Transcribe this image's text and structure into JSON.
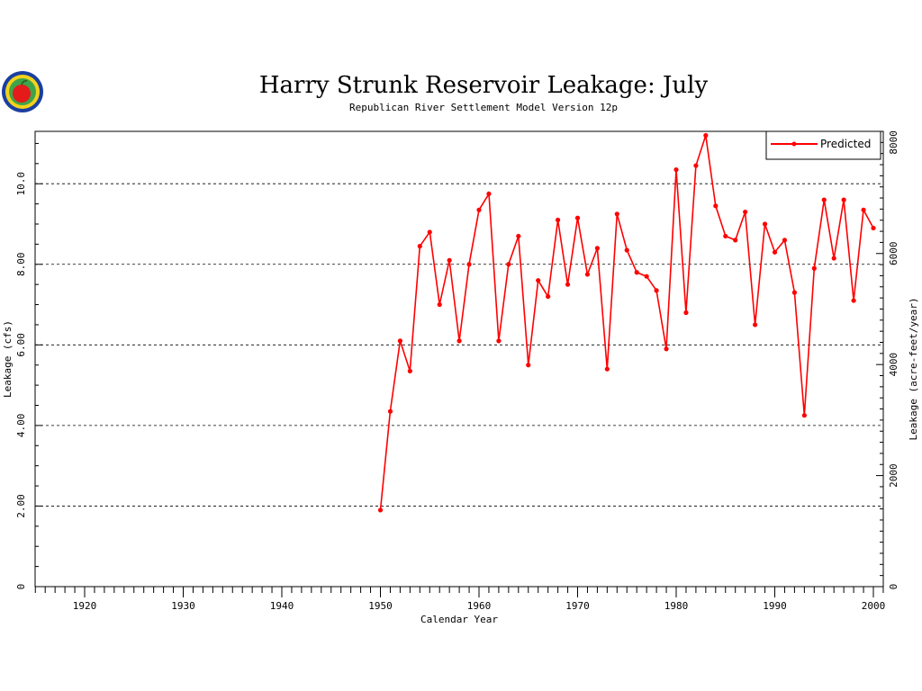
{
  "chart_data": {
    "type": "line",
    "title": "Harry Strunk Reservoir Leakage: July",
    "subtitle": "Republican River Settlement Model Version 12p",
    "xlabel": "Calendar Year",
    "ylabel": "Leakage (cfs)",
    "y2label": "Leakage (acre-feet/year)",
    "xlim": [
      1915,
      2001
    ],
    "ylim": [
      0,
      11.3
    ],
    "y2lim": [
      0,
      8200
    ],
    "x_ticks": [
      "1920",
      "1930",
      "1940",
      "1950",
      "1960",
      "1970",
      "1980",
      "1990",
      "2000"
    ],
    "y_ticks": [
      "0",
      "2.00",
      "4.00",
      "6.00",
      "8.00",
      "10.0"
    ],
    "y2_ticks": [
      "0",
      "2000",
      "4000",
      "6000",
      "8000"
    ],
    "grid": "horizontal dashed",
    "legend_position": "top-right",
    "colors": {
      "series": "#ff0000",
      "grid": "#000000"
    },
    "series": [
      {
        "name": "Predicted",
        "x": [
          1950,
          1951,
          1952,
          1953,
          1954,
          1955,
          1956,
          1957,
          1958,
          1959,
          1960,
          1961,
          1962,
          1963,
          1964,
          1965,
          1966,
          1967,
          1968,
          1969,
          1970,
          1971,
          1972,
          1973,
          1974,
          1975,
          1976,
          1977,
          1978,
          1979,
          1980,
          1981,
          1982,
          1983,
          1984,
          1985,
          1986,
          1987,
          1988,
          1989,
          1990,
          1991,
          1992,
          1993,
          1994,
          1995,
          1996,
          1997,
          1998,
          1999,
          2000
        ],
        "values": [
          1.9,
          4.35,
          6.1,
          5.35,
          8.45,
          8.8,
          7.0,
          8.1,
          6.1,
          8.0,
          9.35,
          9.75,
          6.1,
          8.0,
          8.7,
          5.5,
          7.6,
          7.2,
          9.1,
          7.5,
          9.15,
          7.75,
          8.4,
          5.4,
          9.25,
          8.35,
          7.8,
          7.7,
          7.35,
          5.9,
          10.35,
          6.8,
          10.45,
          11.2,
          9.45,
          8.7,
          8.6,
          9.3,
          6.5,
          9.0,
          8.3,
          8.6,
          7.3,
          4.25,
          7.9,
          9.6,
          8.15,
          9.6,
          7.1,
          9.35,
          8.9
        ]
      }
    ]
  }
}
